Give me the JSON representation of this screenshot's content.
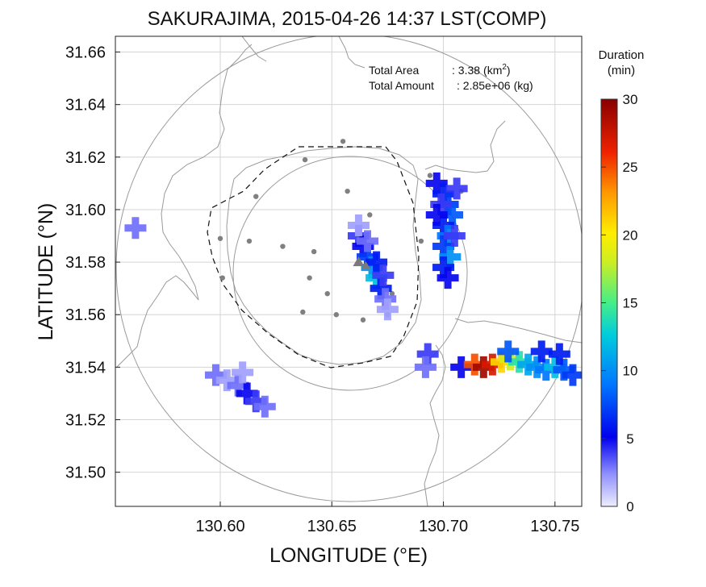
{
  "chart_data": {
    "type": "heatmap",
    "title": "SAKURAJIMA, 2015-04-26 14:37 LST(COMP)",
    "xlabel": "LONGITUDE (°E)",
    "ylabel": "LATITUDE (°N)",
    "xlim": [
      130.553,
      130.762
    ],
    "ylim": [
      31.487,
      31.666
    ],
    "xticks": [
      "130.60",
      "130.65",
      "130.70",
      "130.75"
    ],
    "yticks": [
      "31.66",
      "31.64",
      "31.62",
      "31.60",
      "31.58",
      "31.56",
      "31.54",
      "31.52",
      "31.50"
    ],
    "grid": true,
    "annotation": {
      "area_label": "Total Area",
      "area_value": ": 3.38",
      "area_unit_open": "(km",
      "area_unit_sup": "2",
      "area_unit_close": ")",
      "amount_label": "Total Amount",
      "amount_value": ": 2.85e+06",
      "amount_unit": "(kg)"
    },
    "colorbar": {
      "label_line1": "Duration",
      "label_line2": "(min)",
      "min": 0,
      "max": 30,
      "ticks": [
        "30",
        "25",
        "20",
        "15",
        "10",
        "5",
        "0"
      ]
    },
    "volcano": {
      "name": "Sakurajima",
      "lon": 130.662,
      "lat": 31.58
    },
    "range_circles_km": [
      {
        "radius_deg": 0.052
      },
      {
        "radius_deg": 0.104
      }
    ],
    "stations": [
      [
        130.655,
        31.626
      ],
      [
        130.638,
        31.619
      ],
      [
        130.616,
        31.605
      ],
      [
        130.657,
        31.607
      ],
      [
        130.667,
        31.598
      ],
      [
        130.6,
        31.589
      ],
      [
        130.613,
        31.588
      ],
      [
        130.628,
        31.586
      ],
      [
        130.642,
        31.584
      ],
      [
        130.601,
        31.574
      ],
      [
        130.64,
        31.574
      ],
      [
        130.648,
        31.568
      ],
      [
        130.677,
        31.568
      ],
      [
        130.637,
        31.561
      ],
      [
        130.652,
        31.56
      ],
      [
        130.664,
        31.558
      ],
      [
        130.675,
        31.56
      ],
      [
        130.69,
        31.588
      ],
      [
        130.694,
        31.613
      ],
      [
        130.708,
        31.607
      ]
    ],
    "series": [
      {
        "name": "",
        "cells": [
          {
            "lon": 130.662,
            "lat": 31.59,
            "v": 4
          },
          {
            "lon": 130.664,
            "lat": 31.586,
            "v": 5
          },
          {
            "lon": 130.666,
            "lat": 31.582,
            "v": 7
          },
          {
            "lon": 130.668,
            "lat": 31.578,
            "v": 10
          },
          {
            "lon": 130.67,
            "lat": 31.574,
            "v": 12
          },
          {
            "lon": 130.672,
            "lat": 31.57,
            "v": 6
          },
          {
            "lon": 130.674,
            "lat": 31.566,
            "v": 3
          },
          {
            "lon": 130.666,
            "lat": 31.588,
            "v": 3
          },
          {
            "lon": 130.67,
            "lat": 31.58,
            "v": 6
          },
          {
            "lon": 130.673,
            "lat": 31.575,
            "v": 4
          },
          {
            "lon": 130.675,
            "lat": 31.562,
            "v": 2
          },
          {
            "lon": 130.662,
            "lat": 31.594,
            "v": 2
          }
        ]
      },
      {
        "name": "",
        "cells": [
          {
            "lon": 130.697,
            "lat": 31.61,
            "v": 5
          },
          {
            "lon": 130.7,
            "lat": 31.606,
            "v": 6
          },
          {
            "lon": 130.702,
            "lat": 31.602,
            "v": 7
          },
          {
            "lon": 130.704,
            "lat": 31.598,
            "v": 8
          },
          {
            "lon": 130.7,
            "lat": 31.594,
            "v": 6
          },
          {
            "lon": 130.702,
            "lat": 31.59,
            "v": 9
          },
          {
            "lon": 130.7,
            "lat": 31.586,
            "v": 7
          },
          {
            "lon": 130.703,
            "lat": 31.582,
            "v": 10
          },
          {
            "lon": 130.7,
            "lat": 31.578,
            "v": 6
          },
          {
            "lon": 130.702,
            "lat": 31.574,
            "v": 5
          },
          {
            "lon": 130.699,
            "lat": 31.602,
            "v": 4
          },
          {
            "lon": 130.706,
            "lat": 31.608,
            "v": 4
          },
          {
            "lon": 130.697,
            "lat": 31.598,
            "v": 5
          },
          {
            "lon": 130.705,
            "lat": 31.59,
            "v": 4
          }
        ]
      },
      {
        "name": "",
        "cells": [
          {
            "lon": 130.708,
            "lat": 31.54,
            "v": 5
          },
          {
            "lon": 130.714,
            "lat": 31.541,
            "v": 25
          },
          {
            "lon": 130.718,
            "lat": 31.54,
            "v": 29
          },
          {
            "lon": 130.722,
            "lat": 31.541,
            "v": 27
          },
          {
            "lon": 130.726,
            "lat": 31.542,
            "v": 21
          },
          {
            "lon": 130.73,
            "lat": 31.543,
            "v": 18
          },
          {
            "lon": 130.734,
            "lat": 31.542,
            "v": 14
          },
          {
            "lon": 130.738,
            "lat": 31.541,
            "v": 11
          },
          {
            "lon": 130.742,
            "lat": 31.54,
            "v": 10
          },
          {
            "lon": 130.746,
            "lat": 31.539,
            "v": 9
          },
          {
            "lon": 130.75,
            "lat": 31.54,
            "v": 12
          },
          {
            "lon": 130.754,
            "lat": 31.539,
            "v": 8
          },
          {
            "lon": 130.758,
            "lat": 31.537,
            "v": 7
          },
          {
            "lon": 130.729,
            "lat": 31.546,
            "v": 8
          },
          {
            "lon": 130.744,
            "lat": 31.546,
            "v": 6
          },
          {
            "lon": 130.752,
            "lat": 31.545,
            "v": 6
          }
        ]
      },
      {
        "name": "",
        "cells": [
          {
            "lon": 130.598,
            "lat": 31.537,
            "v": 3
          },
          {
            "lon": 130.603,
            "lat": 31.535,
            "v": 2
          },
          {
            "lon": 130.608,
            "lat": 31.533,
            "v": 3
          },
          {
            "lon": 130.612,
            "lat": 31.53,
            "v": 5
          },
          {
            "lon": 130.616,
            "lat": 31.527,
            "v": 4
          },
          {
            "lon": 130.62,
            "lat": 31.525,
            "v": 3
          },
          {
            "lon": 130.61,
            "lat": 31.538,
            "v": 2
          }
        ]
      },
      {
        "name": "",
        "cells": [
          {
            "lon": 130.562,
            "lat": 31.593,
            "v": 3
          },
          {
            "lon": 130.693,
            "lat": 31.545,
            "v": 4
          },
          {
            "lon": 130.692,
            "lat": 31.54,
            "v": 3
          }
        ]
      }
    ]
  }
}
